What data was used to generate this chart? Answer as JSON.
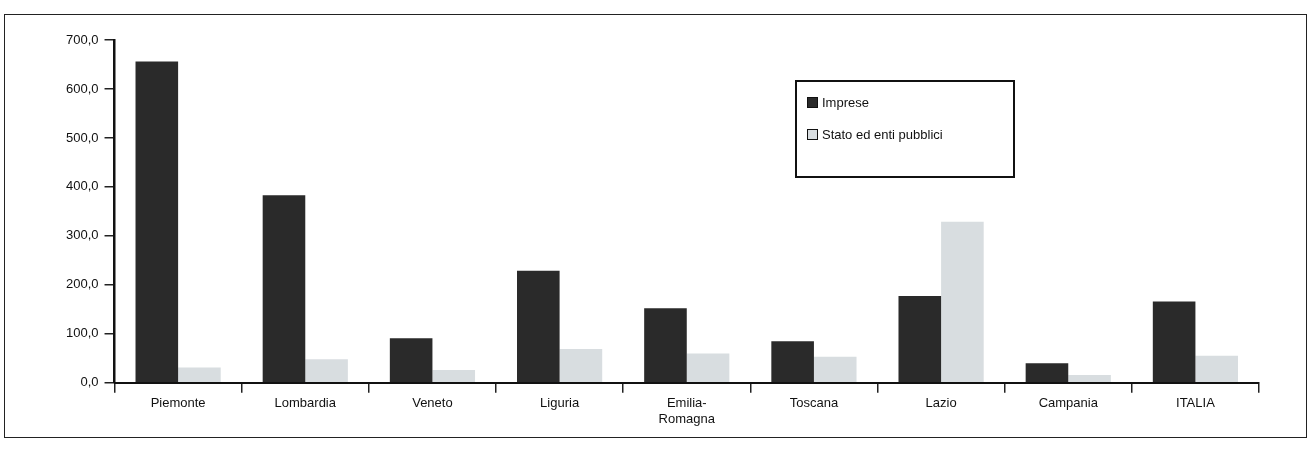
{
  "chart_data": {
    "type": "bar",
    "categories": [
      "Piemonte",
      "Lombardia",
      "Veneto",
      "Liguria",
      "Emilia-Romagna",
      "Toscana",
      "Lazio",
      "Campania",
      "ITALIA"
    ],
    "series": [
      {
        "name": "Imprese",
        "color": "#2a2a2a",
        "values": [
          656,
          383,
          91,
          229,
          152,
          85,
          177,
          40,
          166
        ]
      },
      {
        "name": "Stato ed enti pubblici",
        "color": "#d8dde0",
        "values": [
          31,
          48,
          26,
          69,
          60,
          53,
          329,
          16,
          55
        ]
      }
    ],
    "ylim": [
      0,
      700
    ],
    "yticks": [
      {
        "value": 0,
        "label": "0,0"
      },
      {
        "value": 100,
        "label": "100,0"
      },
      {
        "value": 200,
        "label": "200,0"
      },
      {
        "value": 300,
        "label": "300,0"
      },
      {
        "value": 400,
        "label": "400,0"
      },
      {
        "value": 500,
        "label": "500,0"
      },
      {
        "value": 600,
        "label": "600,0"
      },
      {
        "value": 700,
        "label": "700,0"
      }
    ],
    "grid": false,
    "legend": "top right"
  }
}
